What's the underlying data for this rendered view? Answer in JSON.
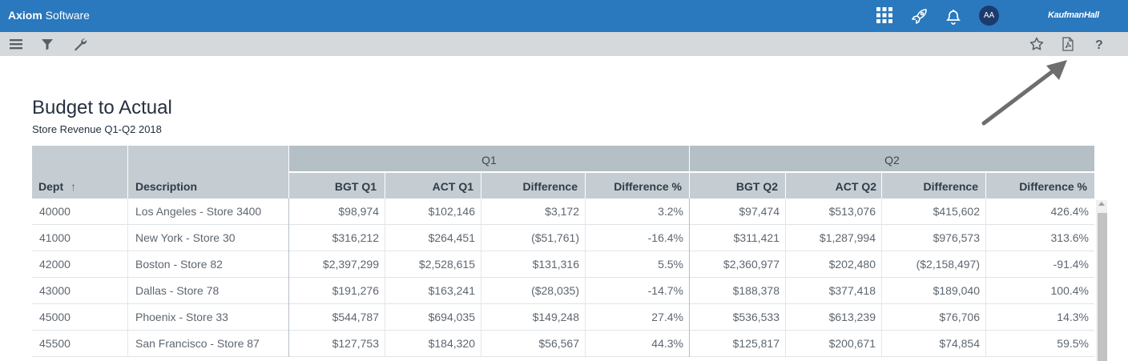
{
  "header": {
    "brand_bold": "Axiom",
    "brand_rest": " Software",
    "avatar_initials": "AA",
    "partner_logo": "KaufmanHall",
    "icons": [
      "apps-grid-icon",
      "rocket-icon",
      "bell-icon"
    ]
  },
  "toolbar": {
    "left_icons": [
      "menu-icon",
      "filter-icon",
      "wrench-icon"
    ],
    "right_icons": [
      "star-icon",
      "pdf-export-icon",
      "help-icon"
    ]
  },
  "report": {
    "title": "Budget to Actual",
    "subtitle": "Store Revenue Q1-Q2 2018"
  },
  "table": {
    "groups": [
      "Q1",
      "Q2"
    ],
    "columns": [
      "Dept",
      "Description",
      "BGT Q1",
      "ACT Q1",
      "Difference",
      "Difference %",
      "BGT Q2",
      "ACT Q2",
      "Difference",
      "Difference %"
    ],
    "sort_indicator": "↑",
    "rows": [
      [
        "40000",
        "Los Angeles - Store 3400",
        "$98,974",
        "$102,146",
        "$3,172",
        "3.2%",
        "$97,474",
        "$513,076",
        "$415,602",
        "426.4%"
      ],
      [
        "41000",
        "New York - Store 30",
        "$316,212",
        "$264,451",
        "($51,761)",
        "-16.4%",
        "$311,421",
        "$1,287,994",
        "$976,573",
        "313.6%"
      ],
      [
        "42000",
        "Boston - Store 82",
        "$2,397,299",
        "$2,528,615",
        "$131,316",
        "5.5%",
        "$2,360,977",
        "$202,480",
        "($2,158,497)",
        "-91.4%"
      ],
      [
        "43000",
        "Dallas - Store 78",
        "$191,276",
        "$163,241",
        "($28,035)",
        "-14.7%",
        "$188,378",
        "$377,418",
        "$189,040",
        "100.4%"
      ],
      [
        "45000",
        "Phoenix - Store 33",
        "$544,787",
        "$694,035",
        "$149,248",
        "27.4%",
        "$536,533",
        "$613,239",
        "$76,706",
        "14.3%"
      ],
      [
        "45500",
        "San Francisco - Store 87",
        "$127,753",
        "$184,320",
        "$56,567",
        "44.3%",
        "$125,817",
        "$200,671",
        "$74,854",
        "59.5%"
      ]
    ]
  },
  "colors": {
    "topbar": "#2a78bd",
    "toolbar": "#d5d9dc",
    "header": "#b5bfc6"
  }
}
